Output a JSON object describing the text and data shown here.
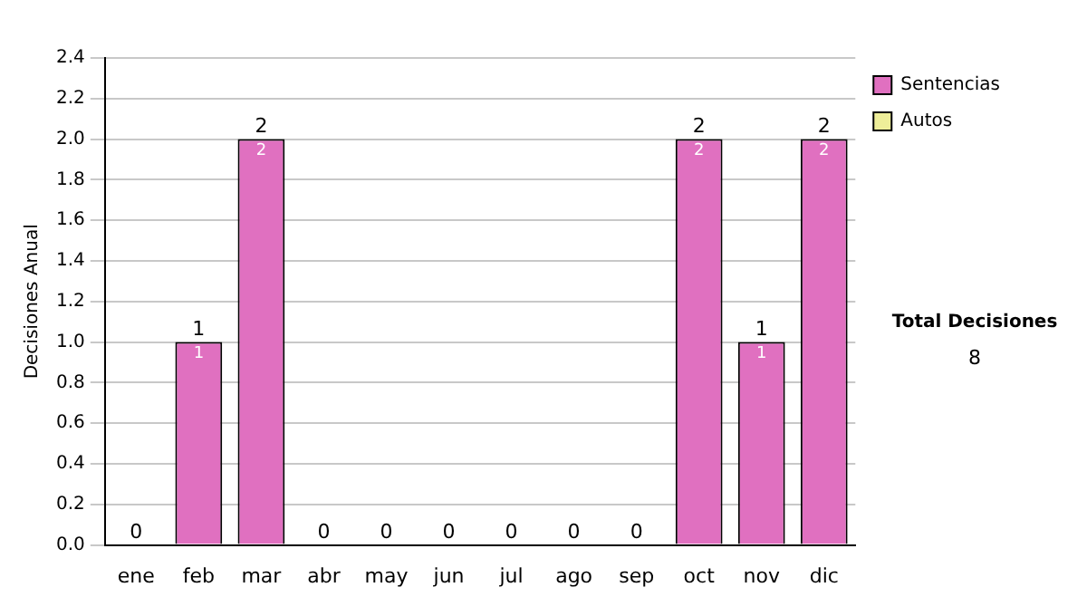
{
  "chart_data": {
    "type": "bar",
    "ylabel": "Decisiones Anual",
    "categories": [
      "ene",
      "feb",
      "mar",
      "abr",
      "may",
      "jun",
      "jul",
      "ago",
      "sep",
      "oct",
      "nov",
      "dic"
    ],
    "series": [
      {
        "name": "Sentencias",
        "color": "#e070c0",
        "values": [
          0,
          1,
          2,
          0,
          0,
          0,
          0,
          0,
          0,
          2,
          1,
          2
        ],
        "value_labels": [
          null,
          "1",
          "2",
          null,
          null,
          null,
          null,
          null,
          null,
          "2",
          "1",
          "2"
        ]
      },
      {
        "name": "Autos",
        "color": "#eeee99",
        "values": [
          0,
          0,
          0,
          0,
          0,
          0,
          0,
          0,
          0,
          0,
          0,
          0
        ]
      }
    ],
    "stacked": true,
    "totals": [
      "0",
      "1",
      "2",
      "0",
      "0",
      "0",
      "0",
      "0",
      "0",
      "2",
      "1",
      "2"
    ],
    "ylim": [
      0,
      2.4
    ],
    "yticks": [
      {
        "value": 0,
        "label": "0.0"
      },
      {
        "value": 0.2,
        "label": "0.2"
      },
      {
        "value": 0.4,
        "label": "0.4"
      },
      {
        "value": 0.6,
        "label": "0.6"
      },
      {
        "value": 0.8,
        "label": "0.8"
      },
      {
        "value": 1,
        "label": "1.0"
      },
      {
        "value": 1.2,
        "label": "1.2"
      },
      {
        "value": 1.4,
        "label": "1.4"
      },
      {
        "value": 1.6,
        "label": "1.6"
      },
      {
        "value": 1.8,
        "label": "1.8"
      },
      {
        "value": 2,
        "label": "2.0"
      },
      {
        "value": 2.2,
        "label": "2.2"
      },
      {
        "value": 2.4,
        "label": "2.4"
      }
    ],
    "grid": "y",
    "legend": "right",
    "annotations": [
      "Total Decisiones",
      "8"
    ]
  }
}
